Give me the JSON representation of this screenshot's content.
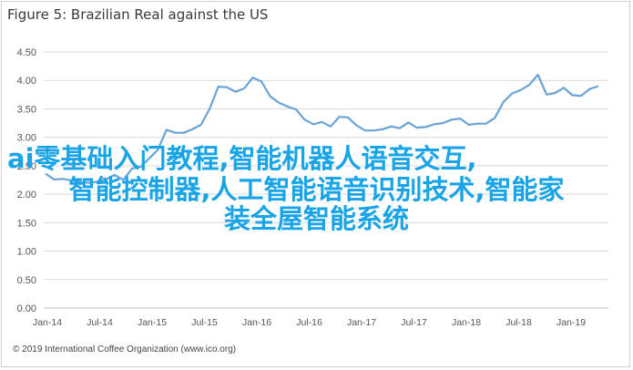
{
  "chart_data": {
    "type": "line",
    "title": "Figure 5: Brazilian Real against the US",
    "xlabel": "",
    "ylabel": "",
    "ylim": [
      0,
      4.5
    ],
    "yticks": [
      "0.00",
      "0.50",
      "1.00",
      "1.50",
      "2.00",
      "2.50",
      "3.00",
      "3.50",
      "4.00",
      "4.50"
    ],
    "xticks": [
      "Jan-14",
      "Jul-14",
      "Jan-15",
      "Jul-15",
      "Jan-16",
      "Jul-16",
      "Jan-17",
      "Jul-17",
      "Jan-18",
      "Jul-18",
      "Jan-19"
    ],
    "grid": "horizontal",
    "line_color": "#6aa3d5",
    "series": [
      {
        "values": [
          2.36,
          2.26,
          2.27,
          2.24,
          2.22,
          2.2,
          2.22,
          2.26,
          2.34,
          2.25,
          2.45,
          2.48,
          2.63,
          2.78,
          3.13,
          3.08,
          3.08,
          3.14,
          3.22,
          3.5,
          3.89,
          3.88,
          3.8,
          3.86,
          4.05,
          3.98,
          3.72,
          3.61,
          3.54,
          3.49,
          3.31,
          3.23,
          3.27,
          3.19,
          3.36,
          3.35,
          3.21,
          3.12,
          3.12,
          3.14,
          3.19,
          3.16,
          3.26,
          3.17,
          3.18,
          3.23,
          3.25,
          3.31,
          3.33,
          3.22,
          3.24,
          3.24,
          3.34,
          3.62,
          3.77,
          3.83,
          3.92,
          4.1,
          3.75,
          3.78,
          3.87,
          3.74,
          3.73,
          3.85,
          3.9
        ]
      }
    ]
  },
  "copyright": "© 2019 International Coffee Organization (www.ico.org)",
  "overlay": {
    "line1": "ai零基础入门教程,智能机器人语音交互,",
    "line2": "智能控制器,人工智能语音识别技术,智能家",
    "line3": "装全屋智能系统"
  }
}
